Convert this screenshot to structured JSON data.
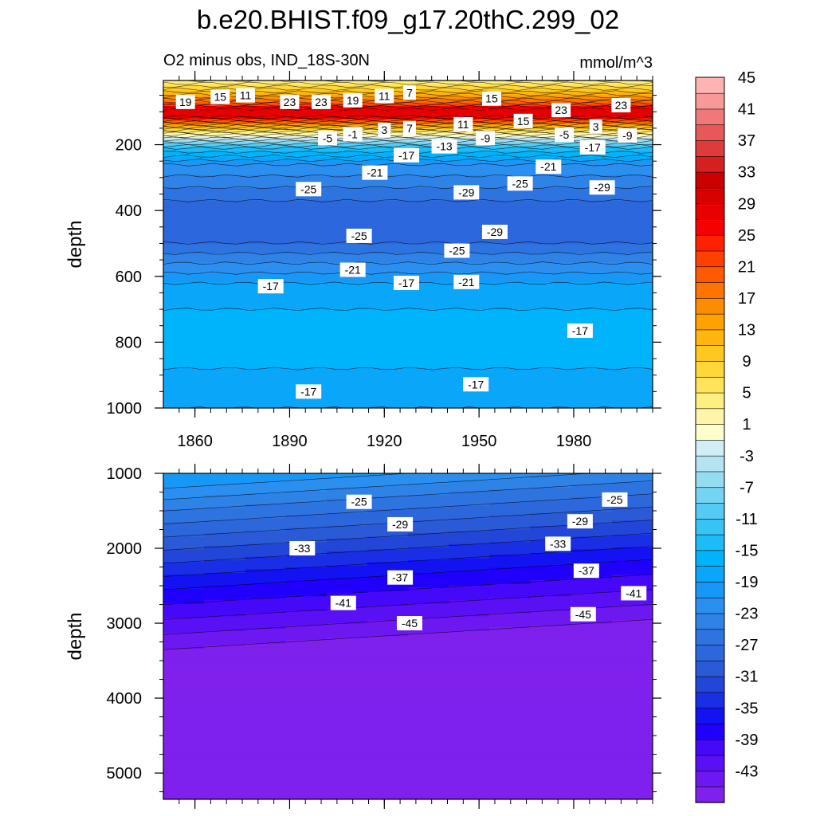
{
  "title": "b.e20.BHIST.f09_g17.20thC.299_02",
  "subtitle_left": "O2 minus obs, IND_18S-30N",
  "subtitle_right": "mmol/m^3",
  "chart_data": [
    {
      "type": "heatmap",
      "panel": "upper",
      "ylabel": "depth",
      "ylim": [
        1000,
        5
      ],
      "xlim": [
        1850,
        2005
      ],
      "x_ticks": [
        1860,
        1890,
        1920,
        1950,
        1980
      ],
      "y_ticks": [
        200,
        400,
        600,
        800,
        1000
      ],
      "depth_profile": [
        {
          "depth": 5,
          "value": 3
        },
        {
          "depth": 40,
          "value": 11
        },
        {
          "depth": 70,
          "value": 19
        },
        {
          "depth": 90,
          "value": 27
        },
        {
          "depth": 110,
          "value": 29
        },
        {
          "depth": 135,
          "value": 17
        },
        {
          "depth": 160,
          "value": 5
        },
        {
          "depth": 185,
          "value": -5
        },
        {
          "depth": 210,
          "value": -13
        },
        {
          "depth": 260,
          "value": -21
        },
        {
          "depth": 330,
          "value": -25
        },
        {
          "depth": 410,
          "value": -29
        },
        {
          "depth": 500,
          "value": -27
        },
        {
          "depth": 560,
          "value": -23
        },
        {
          "depth": 620,
          "value": -19
        },
        {
          "depth": 700,
          "value": -17
        },
        {
          "depth": 780,
          "value": -15
        },
        {
          "depth": 880,
          "value": -17
        },
        {
          "depth": 1000,
          "value": -19
        }
      ],
      "contour_labels": [
        {
          "x": 1857,
          "depth": 70,
          "text": "19"
        },
        {
          "x": 1868,
          "depth": 55,
          "text": "15"
        },
        {
          "x": 1876,
          "depth": 50,
          "text": "11"
        },
        {
          "x": 1890,
          "depth": 70,
          "text": "23"
        },
        {
          "x": 1900,
          "depth": 70,
          "text": "23"
        },
        {
          "x": 1910,
          "depth": 65,
          "text": "19"
        },
        {
          "x": 1920,
          "depth": 52,
          "text": "11"
        },
        {
          "x": 1928,
          "depth": 42,
          "text": "7"
        },
        {
          "x": 1954,
          "depth": 60,
          "text": "15"
        },
        {
          "x": 1976,
          "depth": 95,
          "text": "23"
        },
        {
          "x": 1995,
          "depth": 80,
          "text": "23"
        },
        {
          "x": 1964,
          "depth": 128,
          "text": "15"
        },
        {
          "x": 1945,
          "depth": 138,
          "text": "11"
        },
        {
          "x": 1928,
          "depth": 150,
          "text": "7"
        },
        {
          "x": 1920,
          "depth": 155,
          "text": "3"
        },
        {
          "x": 1987,
          "depth": 145,
          "text": "3"
        },
        {
          "x": 1902,
          "depth": 180,
          "text": "-5"
        },
        {
          "x": 1910,
          "depth": 168,
          "text": "-1"
        },
        {
          "x": 1952,
          "depth": 180,
          "text": "-9"
        },
        {
          "x": 1977,
          "depth": 170,
          "text": "-5"
        },
        {
          "x": 1997,
          "depth": 172,
          "text": "-9"
        },
        {
          "x": 1939,
          "depth": 205,
          "text": "-13"
        },
        {
          "x": 1986,
          "depth": 208,
          "text": "-17"
        },
        {
          "x": 1927,
          "depth": 232,
          "text": "-17"
        },
        {
          "x": 1917,
          "depth": 285,
          "text": "-21"
        },
        {
          "x": 1972,
          "depth": 267,
          "text": "-21"
        },
        {
          "x": 1896,
          "depth": 335,
          "text": "-25"
        },
        {
          "x": 1963,
          "depth": 318,
          "text": "-25"
        },
        {
          "x": 1946,
          "depth": 345,
          "text": "-29"
        },
        {
          "x": 1989,
          "depth": 330,
          "text": "-29"
        },
        {
          "x": 1912,
          "depth": 477,
          "text": "-25"
        },
        {
          "x": 1955,
          "depth": 465,
          "text": "-29"
        },
        {
          "x": 1943,
          "depth": 522,
          "text": "-25"
        },
        {
          "x": 1910,
          "depth": 580,
          "text": "-21"
        },
        {
          "x": 1946,
          "depth": 617,
          "text": "-21"
        },
        {
          "x": 1884,
          "depth": 630,
          "text": "-17"
        },
        {
          "x": 1927,
          "depth": 620,
          "text": "-17"
        },
        {
          "x": 1982,
          "depth": 765,
          "text": "-17"
        },
        {
          "x": 1949,
          "depth": 928,
          "text": "-17"
        },
        {
          "x": 1896,
          "depth": 950,
          "text": "-17"
        }
      ]
    },
    {
      "type": "heatmap",
      "panel": "lower",
      "ylabel": "depth",
      "ylim": [
        5350,
        1000
      ],
      "xlim": [
        1850,
        2005
      ],
      "y_ticks": [
        1000,
        2000,
        3000,
        4000,
        5000
      ],
      "depth_profile": [
        {
          "depth": 1000,
          "value": -21
        },
        {
          "depth": 1300,
          "value": -25
        },
        {
          "depth": 1650,
          "value": -29
        },
        {
          "depth": 2000,
          "value": -33
        },
        {
          "depth": 2350,
          "value": -37
        },
        {
          "depth": 2750,
          "value": -41
        },
        {
          "depth": 3150,
          "value": -45
        }
      ],
      "slope_per_year": -2.6,
      "contour_labels": [
        {
          "x": 1912,
          "depth": 1380,
          "text": "-25"
        },
        {
          "x": 1993,
          "depth": 1350,
          "text": "-25"
        },
        {
          "x": 1925,
          "depth": 1680,
          "text": "-29"
        },
        {
          "x": 1982,
          "depth": 1640,
          "text": "-29"
        },
        {
          "x": 1894,
          "depth": 2000,
          "text": "-33"
        },
        {
          "x": 1975,
          "depth": 1940,
          "text": "-33"
        },
        {
          "x": 1925,
          "depth": 2390,
          "text": "-37"
        },
        {
          "x": 1984,
          "depth": 2300,
          "text": "-37"
        },
        {
          "x": 1907,
          "depth": 2730,
          "text": "-41"
        },
        {
          "x": 1999,
          "depth": 2600,
          "text": "-41"
        },
        {
          "x": 1928,
          "depth": 3000,
          "text": "-45"
        },
        {
          "x": 1983,
          "depth": 2880,
          "text": "-45"
        }
      ]
    }
  ],
  "colorbar": {
    "labels": [
      "45",
      "41",
      "37",
      "33",
      "29",
      "25",
      "21",
      "17",
      "13",
      "9",
      "5",
      "1",
      "-3",
      "-7",
      "-11",
      "-15",
      "-19",
      "-23",
      "-27",
      "-31",
      "-35",
      "-39",
      "-43"
    ],
    "levels": [
      -45,
      -43,
      -41,
      -39,
      -37,
      -35,
      -33,
      -31,
      -29,
      -27,
      -25,
      -23,
      -21,
      -19,
      -17,
      -15,
      -13,
      -11,
      -9,
      -7,
      -5,
      -3,
      -1,
      1,
      3,
      5,
      7,
      9,
      11,
      13,
      15,
      17,
      19,
      21,
      23,
      25,
      27,
      29,
      31,
      33,
      35,
      37,
      39,
      41,
      43,
      45
    ],
    "colors": [
      "#7f20ed",
      "#6d18f0",
      "#5a10f4",
      "#4608f8",
      "#2000fc",
      "#1212f2",
      "#1a2ee6",
      "#2247d8",
      "#2b5ad6",
      "#2d67dc",
      "#2e74e0",
      "#2f82e6",
      "#2b8ff0",
      "#1898f6",
      "#0aa6fa",
      "#00b4fc",
      "#1bbcf8",
      "#37c4f5",
      "#55cbf3",
      "#74d4f2",
      "#95dcf1",
      "#b4e4f2",
      "#cfeef5",
      "#ffffcc",
      "#fff5a8",
      "#ffee80",
      "#ffe45a",
      "#ffd738",
      "#ffc820",
      "#ffb50d",
      "#ffa100",
      "#ff8c00",
      "#ff7400",
      "#ff5a00",
      "#ff4000",
      "#ff2200",
      "#f60000",
      "#e80000",
      "#d80000",
      "#cc0000",
      "#d52020",
      "#de3c3c",
      "#e85858",
      "#f07878",
      "#f89898",
      "#ffb4b4"
    ]
  }
}
